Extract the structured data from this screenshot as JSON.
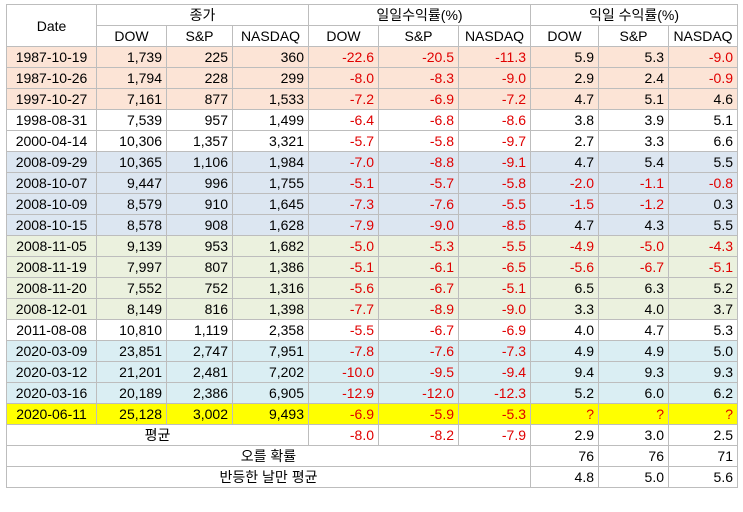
{
  "header": {
    "date": "Date",
    "close_group": "종가",
    "daily_group": "일일수익률(%)",
    "next_group": "익일 수익률(%)",
    "cols": [
      "DOW",
      "S&P",
      "NASDAQ"
    ]
  },
  "rows": [
    {
      "date": "1987-10-19",
      "close": [
        "1,739",
        "225",
        "360"
      ],
      "daily": [
        "-22.6",
        "-20.5",
        "-11.3"
      ],
      "next": [
        "5.9",
        "5.3",
        "-9.0"
      ],
      "bg": "#fce4d6"
    },
    {
      "date": "1987-10-26",
      "close": [
        "1,794",
        "228",
        "299"
      ],
      "daily": [
        "-8.0",
        "-8.3",
        "-9.0"
      ],
      "next": [
        "2.9",
        "2.4",
        "-0.9"
      ],
      "bg": "#fce4d6"
    },
    {
      "date": "1997-10-27",
      "close": [
        "7,161",
        "877",
        "1,533"
      ],
      "daily": [
        "-7.2",
        "-6.9",
        "-7.2"
      ],
      "next": [
        "4.7",
        "5.1",
        "4.6"
      ],
      "bg": "#fce4d6"
    },
    {
      "date": "1998-08-31",
      "close": [
        "7,539",
        "957",
        "1,499"
      ],
      "daily": [
        "-6.4",
        "-6.8",
        "-8.6"
      ],
      "next": [
        "3.8",
        "3.9",
        "5.1"
      ],
      "bg": "#ffffff"
    },
    {
      "date": "2000-04-14",
      "close": [
        "10,306",
        "1,357",
        "3,321"
      ],
      "daily": [
        "-5.7",
        "-5.8",
        "-9.7"
      ],
      "next": [
        "2.7",
        "3.3",
        "6.6"
      ],
      "bg": "#ffffff"
    },
    {
      "date": "2008-09-29",
      "close": [
        "10,365",
        "1,106",
        "1,984"
      ],
      "daily": [
        "-7.0",
        "-8.8",
        "-9.1"
      ],
      "next": [
        "4.7",
        "5.4",
        "5.5"
      ],
      "bg": "#dce6f1"
    },
    {
      "date": "2008-10-07",
      "close": [
        "9,447",
        "996",
        "1,755"
      ],
      "daily": [
        "-5.1",
        "-5.7",
        "-5.8"
      ],
      "next": [
        "-2.0",
        "-1.1",
        "-0.8"
      ],
      "bg": "#dce6f1"
    },
    {
      "date": "2008-10-09",
      "close": [
        "8,579",
        "910",
        "1,645"
      ],
      "daily": [
        "-7.3",
        "-7.6",
        "-5.5"
      ],
      "next": [
        "-1.5",
        "-1.2",
        "0.3"
      ],
      "bg": "#dce6f1"
    },
    {
      "date": "2008-10-15",
      "close": [
        "8,578",
        "908",
        "1,628"
      ],
      "daily": [
        "-7.9",
        "-9.0",
        "-8.5"
      ],
      "next": [
        "4.7",
        "4.3",
        "5.5"
      ],
      "bg": "#dce6f1"
    },
    {
      "date": "2008-11-05",
      "close": [
        "9,139",
        "953",
        "1,682"
      ],
      "daily": [
        "-5.0",
        "-5.3",
        "-5.5"
      ],
      "next": [
        "-4.9",
        "-5.0",
        "-4.3"
      ],
      "bg": "#ebf1de"
    },
    {
      "date": "2008-11-19",
      "close": [
        "7,997",
        "807",
        "1,386"
      ],
      "daily": [
        "-5.1",
        "-6.1",
        "-6.5"
      ],
      "next": [
        "-5.6",
        "-6.7",
        "-5.1"
      ],
      "bg": "#ebf1de"
    },
    {
      "date": "2008-11-20",
      "close": [
        "7,552",
        "752",
        "1,316"
      ],
      "daily": [
        "-5.6",
        "-6.7",
        "-5.1"
      ],
      "next": [
        "6.5",
        "6.3",
        "5.2"
      ],
      "bg": "#ebf1de"
    },
    {
      "date": "2008-12-01",
      "close": [
        "8,149",
        "816",
        "1,398"
      ],
      "daily": [
        "-7.7",
        "-8.9",
        "-9.0"
      ],
      "next": [
        "3.3",
        "4.0",
        "3.7"
      ],
      "bg": "#ebf1de"
    },
    {
      "date": "2011-08-08",
      "close": [
        "10,810",
        "1,119",
        "2,358"
      ],
      "daily": [
        "-5.5",
        "-6.7",
        "-6.9"
      ],
      "next": [
        "4.0",
        "4.7",
        "5.3"
      ],
      "bg": "#ffffff"
    },
    {
      "date": "2020-03-09",
      "close": [
        "23,851",
        "2,747",
        "7,951"
      ],
      "daily": [
        "-7.8",
        "-7.6",
        "-7.3"
      ],
      "next": [
        "4.9",
        "4.9",
        "5.0"
      ],
      "bg": "#daeef3"
    },
    {
      "date": "2020-03-12",
      "close": [
        "21,201",
        "2,481",
        "7,202"
      ],
      "daily": [
        "-10.0",
        "-9.5",
        "-9.4"
      ],
      "next": [
        "9.4",
        "9.3",
        "9.3"
      ],
      "bg": "#daeef3"
    },
    {
      "date": "2020-03-16",
      "close": [
        "20,189",
        "2,386",
        "6,905"
      ],
      "daily": [
        "-12.9",
        "-12.0",
        "-12.3"
      ],
      "next": [
        "5.2",
        "6.0",
        "6.2"
      ],
      "bg": "#daeef3"
    },
    {
      "date": "2020-06-11",
      "close": [
        "25,128",
        "3,002",
        "9,493"
      ],
      "daily": [
        "-6.9",
        "-5.9",
        "-5.3"
      ],
      "next": [
        "?",
        "?",
        "?"
      ],
      "bg": "#ffff00"
    }
  ],
  "avg": {
    "label": "평균",
    "daily": [
      "-8.0",
      "-8.2",
      "-7.9"
    ],
    "next": [
      "2.9",
      "3.0",
      "2.5"
    ]
  },
  "prob": {
    "label": "오를 확률",
    "next": [
      "76",
      "76",
      "71"
    ]
  },
  "rebound": {
    "label": "반등한 날만 평균",
    "next": [
      "4.8",
      "5.0",
      "5.6"
    ]
  }
}
